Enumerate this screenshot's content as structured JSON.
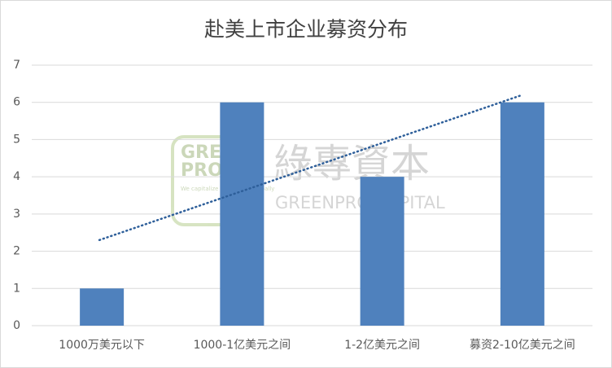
{
  "chart_data": {
    "type": "bar",
    "title": "赴美上市企业募资分布",
    "categories": [
      "1000万美元以下",
      "1000-1亿美元之间",
      "1-2亿美元之间",
      "募资2-10亿美元之间"
    ],
    "values": [
      1,
      6,
      4,
      6
    ],
    "color": "#4f81bd",
    "ylim": [
      0,
      7
    ],
    "yticks": [
      0,
      1,
      2,
      3,
      4,
      5,
      6,
      7
    ],
    "grid": true,
    "trendline": "linear",
    "trendline_color": "#2e5f9a"
  },
  "watermark": {
    "logo_line1": "GREEN",
    "logo_line2": "PRO",
    "tagline": "We capitalize your value globally",
    "name_cn": "綠專資本",
    "name_en": "GREENPRO CAPITAL"
  }
}
